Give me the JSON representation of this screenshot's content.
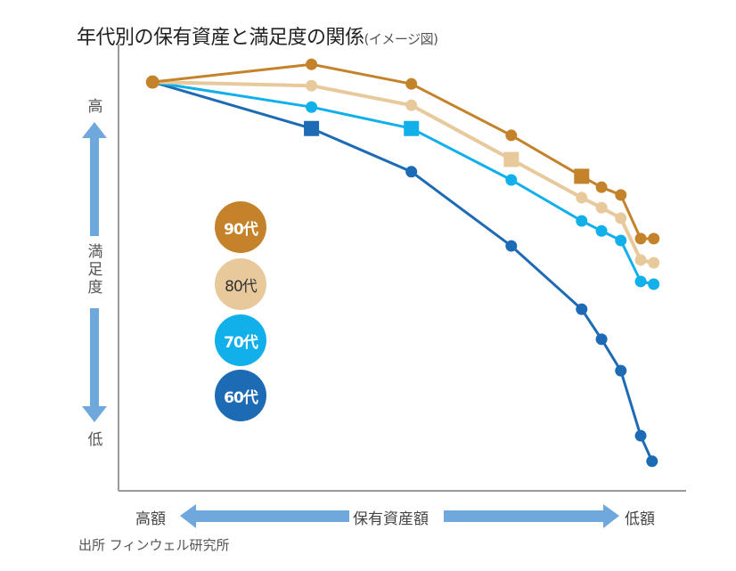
{
  "chart_data": {
    "type": "line",
    "title": "年代別の保有資産と満足度の関係",
    "subtitle": "(イメージ図)",
    "xlabel": "保有資産額",
    "x_left_label": "高額",
    "x_right_label": "低額",
    "ylabel": "満足度",
    "y_top_label": "高",
    "y_bottom_label": "低",
    "x_direction": "high assets on the left, low assets on the right",
    "units_note": "Illustrative chart with no numeric ticks; values are relative positions on a 0-100 scale (x: 0 = left edge, 100 = right edge; y: 0 = bottom, 100 = top)",
    "xlim": [
      0,
      100
    ],
    "ylim": [
      0,
      100
    ],
    "grid": false,
    "legend_position": "center-left (inside plot)",
    "series": [
      {
        "name": "90代",
        "color": "#C4822A",
        "text_color": "#ffffff",
        "points": [
          [
            6,
            89.8
          ],
          [
            34,
            93.7
          ],
          [
            51.6,
            89.4
          ],
          [
            69.2,
            78.1
          ],
          [
            81.6,
            69.1
          ],
          [
            85.1,
            66.7
          ],
          [
            88.5,
            65.0
          ],
          [
            92,
            55.4
          ],
          [
            94.3,
            55.4
          ]
        ],
        "square_index": 4
      },
      {
        "name": "80代",
        "color": "#E8C99C",
        "text_color": "#333333",
        "points": [
          [
            6,
            89.8
          ],
          [
            34,
            89.0
          ],
          [
            51.6,
            84.7
          ],
          [
            69.2,
            72.8
          ],
          [
            81.6,
            64.4
          ],
          [
            85.1,
            62.2
          ],
          [
            88.5,
            59.9
          ],
          [
            92,
            50.7
          ],
          [
            94.3,
            50.1
          ]
        ],
        "square_index": 3
      },
      {
        "name": "70代",
        "color": "#12B0EA",
        "text_color": "#ffffff",
        "points": [
          [
            6,
            89.8
          ],
          [
            34,
            84.3
          ],
          [
            51.6,
            79.6
          ],
          [
            69.2,
            68.3
          ],
          [
            81.6,
            59.3
          ],
          [
            85.1,
            57.1
          ],
          [
            88.5,
            55.0
          ],
          [
            92,
            46.0
          ],
          [
            94.3,
            45.4
          ]
        ],
        "square_index": 2
      },
      {
        "name": "60代",
        "color": "#1D6BB5",
        "text_color": "#ffffff",
        "points": [
          [
            6,
            89.8
          ],
          [
            34,
            79.6
          ],
          [
            51.6,
            70.1
          ],
          [
            69.2,
            53.8
          ],
          [
            81.6,
            39.9
          ],
          [
            85.1,
            33.3
          ],
          [
            88.5,
            26.4
          ],
          [
            92,
            12.1
          ],
          [
            94,
            6.5
          ]
        ],
        "square_index": 1
      }
    ],
    "start_point_color": "#C4822A"
  },
  "source": "出所 フィンウェル研究所",
  "arrow_color": "#6FA8DC",
  "axis_color": "#9A9A9A"
}
